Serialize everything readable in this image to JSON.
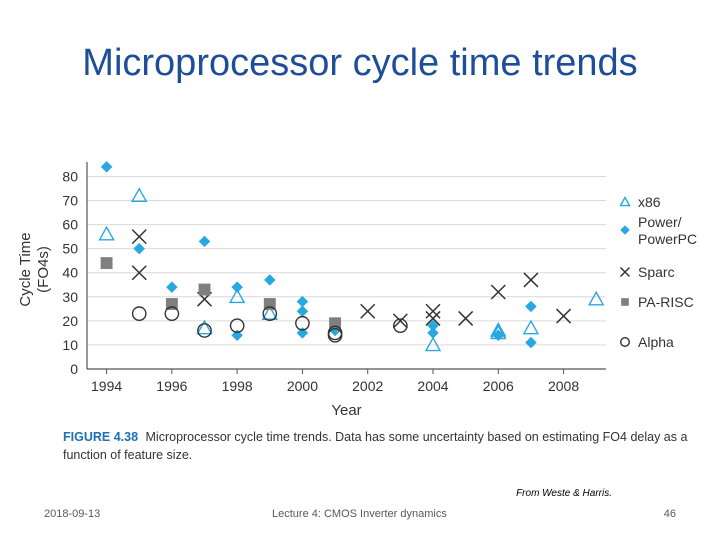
{
  "slide": {
    "title": "Microprocessor cycle time trends",
    "credit": "From Weste & Harris.",
    "footer_date": "2018-09-13",
    "footer_lecture": "Lecture 4: CMOS Inverter dynamics",
    "page_number": "46"
  },
  "figure": {
    "label": "FIGURE 4.38",
    "caption": "Microprocessor cycle time trends. Data has some uncertainty based on estimating FO4 delay as a function of feature size."
  },
  "colors": {
    "accent": "#29a8e0",
    "gray": "#7f7f7f",
    "black": "#333333",
    "title": "#1f4e99"
  },
  "chart_data": {
    "type": "scatter",
    "title": "",
    "xlabel": "Year",
    "ylabel": "Cycle Time",
    "ylabel2": "(FO4s)",
    "xlim": [
      1993.4,
      2009.3
    ],
    "ylim": [
      0,
      86
    ],
    "xticks": [
      1994,
      1996,
      1998,
      2000,
      2002,
      2004,
      2006,
      2008
    ],
    "yticks": [
      0,
      10,
      20,
      30,
      40,
      50,
      60,
      70,
      80
    ],
    "grid": "horizontal",
    "legend_position": "right",
    "series": [
      {
        "name": "x86",
        "marker": "triangle",
        "color": "#29a8e0",
        "points": [
          [
            1994,
            56
          ],
          [
            1995,
            72
          ],
          [
            1997,
            17
          ],
          [
            1998,
            30
          ],
          [
            1999,
            23
          ],
          [
            2004,
            10
          ],
          [
            2006,
            16
          ],
          [
            2006,
            15
          ],
          [
            2007,
            17
          ],
          [
            2009,
            29
          ]
        ]
      },
      {
        "name": "Power/ PowerPC",
        "legend_lines": [
          "Power/",
          "PowerPC"
        ],
        "marker": "diamond",
        "color": "#29a8e0",
        "points": [
          [
            1994,
            84
          ],
          [
            1995,
            50
          ],
          [
            1996,
            34
          ],
          [
            1997,
            53
          ],
          [
            1998,
            34
          ],
          [
            1998,
            14
          ],
          [
            1999,
            37
          ],
          [
            2000,
            28
          ],
          [
            2000,
            24
          ],
          [
            2000,
            15
          ],
          [
            2001,
            16
          ],
          [
            2004,
            18
          ],
          [
            2004,
            15
          ],
          [
            2006,
            14
          ],
          [
            2007,
            26
          ],
          [
            2007,
            11
          ]
        ]
      },
      {
        "name": "Sparc",
        "marker": "x",
        "color": "#333333",
        "points": [
          [
            1995,
            55
          ],
          [
            1995,
            40
          ],
          [
            1997,
            29
          ],
          [
            2002,
            24
          ],
          [
            2003,
            20
          ],
          [
            2004,
            24
          ],
          [
            2004,
            21
          ],
          [
            2005,
            21
          ],
          [
            2006,
            32
          ],
          [
            2007,
            37
          ],
          [
            2008,
            22
          ]
        ]
      },
      {
        "name": "PA-RISC",
        "marker": "square",
        "color": "#7f7f7f",
        "points": [
          [
            1994,
            44
          ],
          [
            1996,
            27
          ],
          [
            1997,
            33
          ],
          [
            1999,
            27
          ],
          [
            2001,
            19
          ]
        ]
      },
      {
        "name": "Alpha",
        "marker": "circle",
        "color": "#333333",
        "points": [
          [
            1995,
            23
          ],
          [
            1996,
            23
          ],
          [
            1997,
            16
          ],
          [
            1998,
            18
          ],
          [
            1999,
            23
          ],
          [
            2000,
            19
          ],
          [
            2001,
            15
          ],
          [
            2001,
            14
          ],
          [
            2003,
            18
          ]
        ]
      }
    ]
  }
}
